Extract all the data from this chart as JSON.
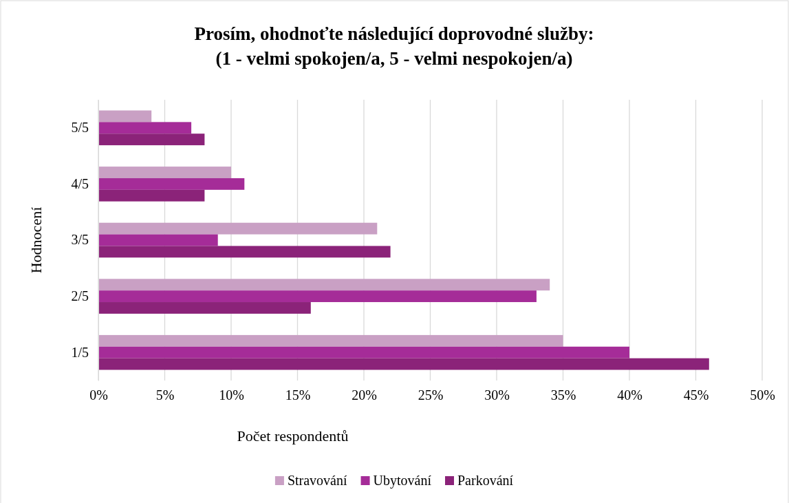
{
  "chart_data": {
    "type": "bar",
    "orientation": "horizontal",
    "title": "Prosím, ohodnoťte následující doprovodné služby:\n(1 - velmi spokojen/a, 5 - velmi nespokojen/a)",
    "xlabel": "Počet respondentů",
    "ylabel": "Hodnocení",
    "categories": [
      "5/5",
      "4/5",
      "3/5",
      "2/5",
      "1/5"
    ],
    "series": [
      {
        "name": "Stravování",
        "color": "#c9a0c4",
        "values": [
          4,
          10,
          21,
          34,
          35
        ]
      },
      {
        "name": "Ubytování",
        "color": "#a52c98",
        "values": [
          7,
          11,
          9,
          33,
          40
        ]
      },
      {
        "name": "Parkování",
        "color": "#8b2379",
        "values": [
          8,
          8,
          22,
          16,
          46
        ]
      }
    ],
    "xlim": [
      0,
      50
    ],
    "xticks": [
      {
        "value": 0,
        "label": "0%"
      },
      {
        "value": 5,
        "label": "5%"
      },
      {
        "value": 10,
        "label": "10%"
      },
      {
        "value": 15,
        "label": "15%"
      },
      {
        "value": 20,
        "label": "20%"
      },
      {
        "value": 25,
        "label": "25%"
      },
      {
        "value": 30,
        "label": "30%"
      },
      {
        "value": 35,
        "label": "35%"
      },
      {
        "value": 40,
        "label": "40%"
      },
      {
        "value": 45,
        "label": "45%"
      },
      {
        "value": 50,
        "label": "50%"
      }
    ],
    "grid": "x",
    "legend": "bottom"
  }
}
